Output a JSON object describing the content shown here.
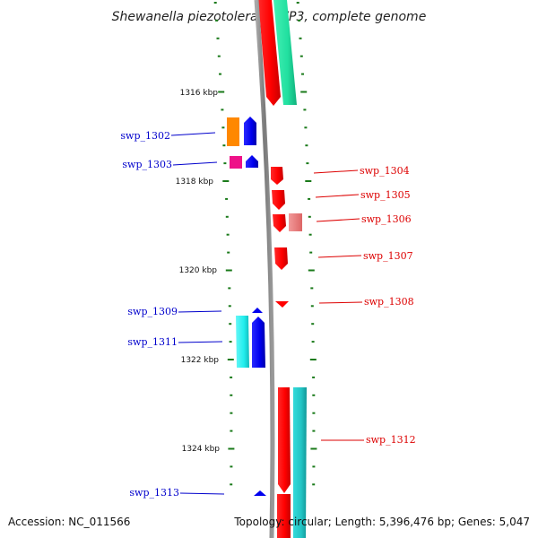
{
  "title": "Shewanella piezotolerans WP3, complete genome",
  "footer": {
    "accession": "Accession: NC_011566",
    "topology": "Topology: circular; Length: 5,396,476 bp; Genes: 5,047"
  },
  "scale_labels": [
    "1316 kbp",
    "1318 kbp",
    "1320 kbp",
    "1322 kbp",
    "1324 kbp"
  ],
  "left_labels": [
    "swp_1302",
    "swp_1303",
    "swp_1309",
    "swp_1311",
    "swp_1313"
  ],
  "right_labels": [
    "swp_1304",
    "swp_1305",
    "swp_1306",
    "swp_1307",
    "swp_1308",
    "swp_1312"
  ],
  "colors": {
    "backbone": "#8c8c8c",
    "tick": "#1a7a1a",
    "left_label": "#0000cc",
    "right_label": "#dd0000",
    "red": "#ff0000",
    "pink_red": "#ee7777",
    "green": "#22e0a0",
    "cyan": "#22cccc",
    "light_cyan": "#33eeee",
    "blue": "#0000ee",
    "orange": "#ff8800",
    "magenta": "#ee1188"
  }
}
